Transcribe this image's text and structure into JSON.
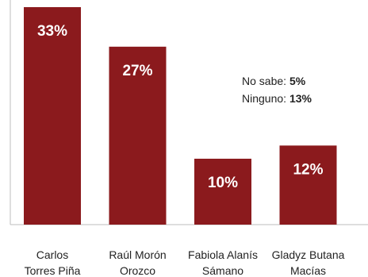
{
  "chart_data": {
    "type": "bar",
    "categories": [
      [
        "Carlos",
        "Torres Piña"
      ],
      [
        "Raúl Morón",
        "Orozco"
      ],
      [
        "Fabiola Alanís",
        "Sámano"
      ],
      [
        "Gladyz Butana",
        "Macías"
      ]
    ],
    "values": [
      33,
      27,
      10,
      12
    ],
    "value_labels": [
      "33%",
      "27%",
      "10%",
      "12%"
    ],
    "ylim": [
      0,
      33
    ],
    "grid": false,
    "bar_color": "#8b1a1d",
    "annotations": [
      {
        "label": "No sabe:",
        "value": "5%"
      },
      {
        "label": "Ninguno:",
        "value": "13%"
      }
    ]
  }
}
